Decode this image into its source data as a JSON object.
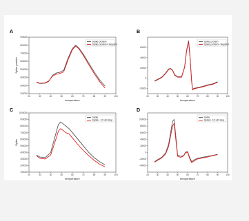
{
  "chart_data": [
    {
      "panel": "A",
      "type": "line",
      "xlabel": "temperature",
      "ylabel": "Spike protein",
      "xlim": [
        20,
        100
      ],
      "ylim": [
        200000,
        900000
      ],
      "xticks": [
        20,
        30,
        40,
        50,
        60,
        70,
        80,
        90,
        100
      ],
      "yticks": [
        200000,
        300000,
        400000,
        500000,
        600000,
        700000,
        800000,
        900000
      ],
      "legend_position": "top-right",
      "series": [
        {
          "name": "Spike protein",
          "color": "#555555",
          "x": [
            27,
            30,
            35,
            38,
            42,
            45,
            48,
            52,
            56,
            60,
            63,
            66,
            70,
            75,
            80,
            85,
            90
          ],
          "y": [
            340000,
            325000,
            330000,
            350000,
            430000,
            455000,
            462000,
            490000,
            640000,
            760000,
            800000,
            765000,
            690000,
            580000,
            470000,
            370000,
            295000
          ]
        },
        {
          "name": "Spike protein+ Heparin",
          "color": "#e02020",
          "x": [
            27,
            30,
            35,
            38,
            42,
            45,
            48,
            52,
            56,
            60,
            63,
            66,
            70,
            75,
            80,
            85,
            90
          ],
          "y": [
            345000,
            330000,
            335000,
            355000,
            420000,
            440000,
            447000,
            470000,
            620000,
            745000,
            790000,
            755000,
            675000,
            560000,
            450000,
            350000,
            270000
          ]
        }
      ]
    },
    {
      "panel": "B",
      "type": "line",
      "xlabel": "temperature",
      "ylabel": "",
      "xlim": [
        20,
        100
      ],
      "ylim": [
        -30000,
        80000
      ],
      "xticks": [
        20,
        30,
        40,
        50,
        60,
        70,
        80,
        90,
        100
      ],
      "yticks": [
        -20000,
        0,
        20000,
        40000,
        60000
      ],
      "legend_position": "top-right",
      "series": [
        {
          "name": "Spike protein",
          "color": "#555555",
          "x": [
            27,
            30,
            34,
            38,
            41,
            43,
            45,
            47,
            50,
            54,
            57,
            59,
            61,
            62.5,
            64,
            65,
            66,
            70,
            75,
            80,
            85,
            90
          ],
          "y": [
            -5000,
            -2000,
            2000,
            10000,
            18000,
            19000,
            16000,
            7000,
            3000,
            3000,
            22000,
            55000,
            73000,
            40000,
            -5000,
            -22000,
            -20000,
            -18000,
            -16000,
            -13000,
            -11000,
            -7000
          ]
        },
        {
          "name": "Spike protein+ Heparin",
          "color": "#e02020",
          "x": [
            27,
            30,
            34,
            38,
            41,
            43,
            45,
            47,
            50,
            54,
            57,
            59,
            61,
            62.5,
            64,
            65,
            66,
            70,
            75,
            80,
            85,
            90
          ],
          "y": [
            -6000,
            -3000,
            1000,
            9000,
            17000,
            18500,
            15000,
            6000,
            2000,
            2000,
            21000,
            53000,
            71000,
            38000,
            -6000,
            -23000,
            -21000,
            -19000,
            -17000,
            -14000,
            -12000,
            -8000
          ]
        }
      ]
    },
    {
      "panel": "C",
      "type": "line",
      "xlabel": "temperature",
      "ylabel": "Spike",
      "xlim": [
        20,
        100
      ],
      "ylim": [
        100000,
        1000000
      ],
      "xticks": [
        20,
        30,
        40,
        50,
        60,
        70,
        80,
        90,
        100
      ],
      "yticks": [
        100000,
        200000,
        300000,
        400000,
        500000,
        600000,
        700000,
        800000,
        900000,
        1000000
      ],
      "legend_position": "top-right",
      "series": [
        {
          "name": "Spike",
          "color": "#555555",
          "x": [
            27,
            30,
            35,
            40,
            44,
            47,
            49,
            51,
            54,
            57,
            60,
            65,
            70,
            75,
            80,
            85,
            90
          ],
          "y": [
            360000,
            330000,
            320000,
            400000,
            640000,
            820000,
            860000,
            840000,
            800000,
            760000,
            700000,
            600000,
            500000,
            400000,
            320000,
            260000,
            210000
          ]
        },
        {
          "name": "Spike+ 10 uM Hep",
          "color": "#e02020",
          "x": [
            27,
            30,
            35,
            40,
            44,
            47,
            49,
            51,
            54,
            57,
            60,
            65,
            70,
            75,
            80,
            85,
            90
          ],
          "y": [
            350000,
            310000,
            300000,
            360000,
            560000,
            720000,
            760000,
            740000,
            700000,
            680000,
            620000,
            520000,
            430000,
            350000,
            280000,
            220000,
            180000
          ]
        }
      ]
    },
    {
      "panel": "D",
      "type": "line",
      "xlabel": "temperature",
      "ylabel": "",
      "xlim": [
        20,
        100
      ],
      "ylim": [
        -60000,
        120000
      ],
      "xticks": [
        20,
        30,
        40,
        50,
        60,
        70,
        80,
        90,
        100
      ],
      "yticks": [
        -40000,
        -20000,
        0,
        20000,
        40000,
        60000,
        80000,
        100000
      ],
      "legend_position": "top-right",
      "series": [
        {
          "name": "Spike",
          "color": "#555555",
          "x": [
            27,
            30,
            34,
            38,
            41,
            43,
            45,
            46.5,
            48,
            50,
            53,
            56,
            58,
            60,
            62,
            64,
            67,
            70,
            75,
            80,
            85,
            90
          ],
          "y": [
            -28000,
            -22000,
            -15000,
            -2000,
            25000,
            60000,
            95000,
            100000,
            55000,
            -8000,
            -12000,
            -10000,
            1000,
            2000,
            -15000,
            -28000,
            -22000,
            -18000,
            -15000,
            -12000,
            -9000,
            -6000
          ]
        },
        {
          "name": "Spike+ 10 uM Hep",
          "color": "#e02020",
          "x": [
            27,
            30,
            34,
            38,
            41,
            43,
            45,
            46.5,
            48,
            50,
            53,
            56,
            58,
            60,
            62,
            64,
            67,
            70,
            75,
            80,
            85,
            90
          ],
          "y": [
            -30000,
            -24000,
            -17000,
            -5000,
            18000,
            50000,
            80000,
            88000,
            45000,
            -12000,
            -15000,
            -11000,
            -1000,
            0,
            -18000,
            -31000,
            -25000,
            -20000,
            -17000,
            -14000,
            -10000,
            -7000
          ]
        }
      ]
    }
  ]
}
